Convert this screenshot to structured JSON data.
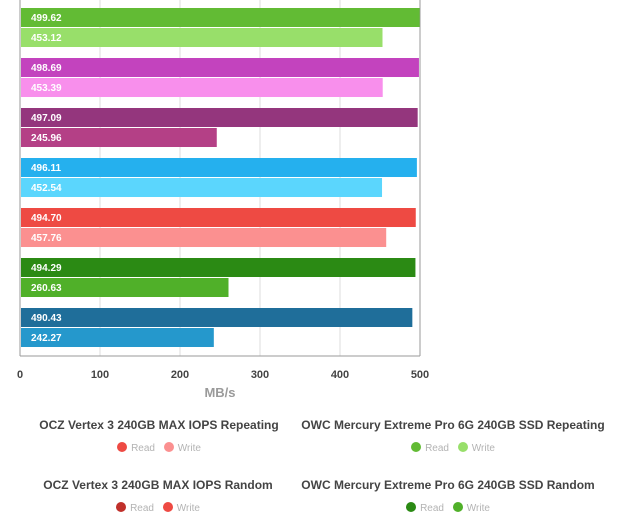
{
  "chart_data": {
    "type": "bar",
    "orientation": "horizontal",
    "xlabel": "MB/s",
    "xlim": [
      0,
      500
    ],
    "xticks": [
      0,
      100,
      200,
      300,
      400,
      500
    ],
    "grid": true,
    "legend_position": "bottom",
    "groups": [
      {
        "colors": [
          "#62bb34",
          "#98df6a"
        ],
        "values": [
          499.62,
          453.12
        ],
        "labels": [
          "499.62",
          "453.12"
        ]
      },
      {
        "colors": [
          "#c343be",
          "#f88fec"
        ],
        "values": [
          498.69,
          453.39
        ],
        "labels": [
          "498.69",
          "453.39"
        ]
      },
      {
        "colors": [
          "#94367d",
          "#b44086"
        ],
        "values": [
          497.09,
          245.96
        ],
        "labels": [
          "497.09",
          "245.96"
        ]
      },
      {
        "colors": [
          "#25b0ee",
          "#5bd6fd"
        ],
        "values": [
          496.11,
          452.54
        ],
        "labels": [
          "496.11",
          "452.54"
        ]
      },
      {
        "colors": [
          "#ee4a43",
          "#fb9090"
        ],
        "values": [
          494.7,
          457.76
        ],
        "labels": [
          "494.70",
          "457.76"
        ]
      },
      {
        "colors": [
          "#2b8a14",
          "#50b029"
        ],
        "values": [
          494.29,
          260.63
        ],
        "labels": [
          "494.29",
          "260.63"
        ]
      },
      {
        "colors": [
          "#1f6e9a",
          "#2598cc"
        ],
        "values": [
          490.43,
          242.27
        ],
        "labels": [
          "490.43",
          "242.27"
        ]
      }
    ],
    "legend": [
      {
        "title": "OCZ Vertex 3 240GB MAX IOPS Repeating",
        "read_label": "Read",
        "write_label": "Write",
        "read_color": "#ee4a43",
        "write_color": "#fb9090"
      },
      {
        "title": "OWC Mercury Extreme Pro 6G 240GB SSD Repeating",
        "read_label": "Read",
        "write_label": "Write",
        "read_color": "#62bb34",
        "write_color": "#98df6a"
      },
      {
        "title": "OCZ Vertex 3 240GB MAX IOPS Random",
        "read_label": "Read",
        "write_label": "Write",
        "read_color": "#c0302b",
        "write_color": "#ee4a43"
      },
      {
        "title": "OWC Mercury Extreme Pro 6G 240GB SSD Random",
        "read_label": "Read",
        "write_label": "Write",
        "read_color": "#2b8a14",
        "write_color": "#50b029"
      }
    ]
  }
}
